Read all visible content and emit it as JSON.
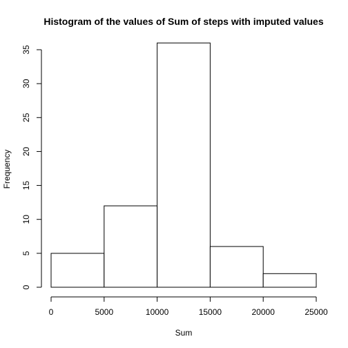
{
  "chart_data": {
    "type": "bar",
    "title": "Histogram of the values of Sum of steps with imputed values",
    "xlabel": "Sum",
    "ylabel": "Frequency",
    "bins": [
      {
        "start": 0,
        "end": 5000,
        "count": 5
      },
      {
        "start": 5000,
        "end": 10000,
        "count": 12
      },
      {
        "start": 10000,
        "end": 15000,
        "count": 36
      },
      {
        "start": 15000,
        "end": 20000,
        "count": 6
      },
      {
        "start": 20000,
        "end": 25000,
        "count": 2
      }
    ],
    "x_ticks": [
      "0",
      "5000",
      "10000",
      "15000",
      "20000",
      "25000"
    ],
    "y_ticks": [
      "0",
      "5",
      "10",
      "15",
      "20",
      "25",
      "30",
      "35"
    ],
    "xlim": [
      0,
      25000
    ],
    "ylim": [
      0,
      35
    ],
    "grid": false
  }
}
